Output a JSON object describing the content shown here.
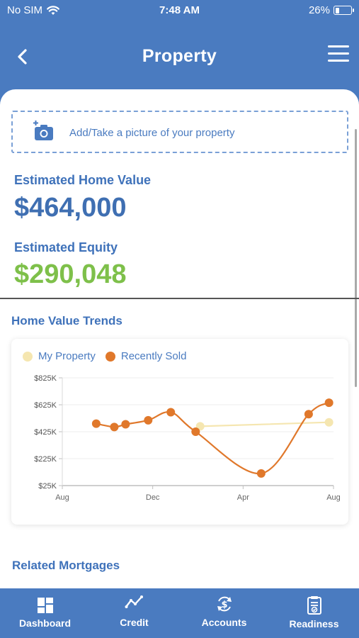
{
  "status_bar": {
    "carrier": "No SIM",
    "time": "7:48 AM",
    "battery": "26%",
    "battery_level": 0.26
  },
  "header": {
    "title": "Property",
    "back_icon": "chevron-left-icon",
    "menu_icon": "hamburger-icon"
  },
  "photo_upload": {
    "label": "Add/Take a picture of your property",
    "icon": "camera-add-icon"
  },
  "estimated_home_value": {
    "label": "Estimated Home Value",
    "value": "$464,000"
  },
  "estimated_equity": {
    "label": "Estimated Equity",
    "value": "$290,048"
  },
  "home_value_trends": {
    "title": "Home Value Trends"
  },
  "chart_data": {
    "type": "line",
    "title": "",
    "xlabel": "",
    "ylabel": "",
    "x_ticks": [
      "Aug",
      "Dec",
      "Apr",
      "Aug"
    ],
    "y_ticks": [
      "$25K",
      "$225K",
      "$425K",
      "$625K",
      "$825K"
    ],
    "ylim": [
      25,
      825
    ],
    "legend_position": "top-left",
    "grid": true,
    "series": [
      {
        "name": "My Property",
        "color": "#f5e6b0",
        "points": [
          {
            "x": 6.1,
            "y": 465
          },
          {
            "x": 11.8,
            "y": 495
          }
        ]
      },
      {
        "name": "Recently Sold",
        "color": "#e0782b",
        "points": [
          {
            "x": 1.5,
            "y": 485
          },
          {
            "x": 2.3,
            "y": 460
          },
          {
            "x": 2.8,
            "y": 480
          },
          {
            "x": 3.8,
            "y": 510
          },
          {
            "x": 4.8,
            "y": 570
          },
          {
            "x": 5.9,
            "y": 425
          },
          {
            "x": 8.8,
            "y": 115
          },
          {
            "x": 10.9,
            "y": 555
          },
          {
            "x": 11.8,
            "y": 640
          }
        ]
      }
    ]
  },
  "related_mortgages": {
    "title": "Related Mortgages"
  },
  "tabbar": {
    "tabs": [
      {
        "label": "Dashboard",
        "icon": "grid-icon"
      },
      {
        "label": "Credit",
        "icon": "trend-line-icon"
      },
      {
        "label": "Accounts",
        "icon": "dollar-sync-icon"
      },
      {
        "label": "Readiness",
        "icon": "checklist-icon"
      }
    ]
  }
}
